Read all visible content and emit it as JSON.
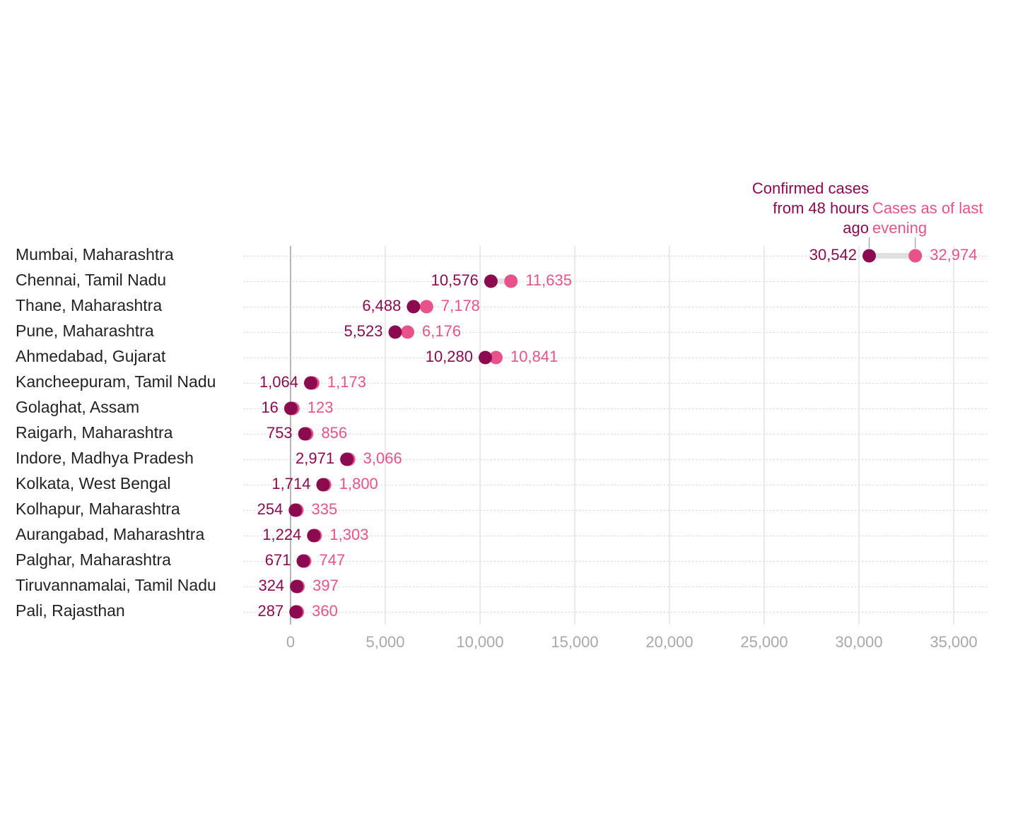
{
  "colors": {
    "previous": "#8b0a50",
    "latest": "#e8528a",
    "connector": "#e0e0e0",
    "grid": "#dddddd",
    "row_line": "#d4d4d4",
    "zero_line": "#999999",
    "label_text": "#222222",
    "tick_text": "#a8a8a8"
  },
  "chart_data": {
    "type": "dot-plot",
    "xlim": [
      0,
      35000
    ],
    "xticks": [
      0,
      5000,
      10000,
      15000,
      20000,
      25000,
      30000,
      35000
    ],
    "xtick_labels": [
      "0",
      "5,000",
      "10,000",
      "15,000",
      "20,000",
      "25,000",
      "30,000",
      "35,000"
    ],
    "legend": {
      "previous_lines": [
        "Confirmed cases",
        "from 48 hours",
        "ago"
      ],
      "latest_lines": [
        "Cases as of last",
        "evening"
      ]
    },
    "rows": [
      {
        "label": "Mumbai, Maharashtra",
        "previous": 30542,
        "latest": 32974,
        "previous_label": "30,542",
        "latest_label": "32,974"
      },
      {
        "label": "Chennai, Tamil Nadu",
        "previous": 10576,
        "latest": 11635,
        "previous_label": "10,576",
        "latest_label": "11,635"
      },
      {
        "label": "Thane, Maharashtra",
        "previous": 6488,
        "latest": 7178,
        "previous_label": "6,488",
        "latest_label": "7,178"
      },
      {
        "label": "Pune, Maharashtra",
        "previous": 5523,
        "latest": 6176,
        "previous_label": "5,523",
        "latest_label": "6,176"
      },
      {
        "label": "Ahmedabad, Gujarat",
        "previous": 10280,
        "latest": 10841,
        "previous_label": "10,280",
        "latest_label": "10,841"
      },
      {
        "label": "Kancheepuram, Tamil Nadu",
        "previous": 1064,
        "latest": 1173,
        "previous_label": "1,064",
        "latest_label": "1,173"
      },
      {
        "label": "Golaghat, Assam",
        "previous": 16,
        "latest": 123,
        "previous_label": "16",
        "latest_label": "123"
      },
      {
        "label": "Raigarh, Maharashtra",
        "previous": 753,
        "latest": 856,
        "previous_label": "753",
        "latest_label": "856"
      },
      {
        "label": "Indore, Madhya Pradesh",
        "previous": 2971,
        "latest": 3066,
        "previous_label": "2,971",
        "latest_label": "3,066"
      },
      {
        "label": "Kolkata, West Bengal",
        "previous": 1714,
        "latest": 1800,
        "previous_label": "1,714",
        "latest_label": "1,800"
      },
      {
        "label": "Kolhapur, Maharashtra",
        "previous": 254,
        "latest": 335,
        "previous_label": "254",
        "latest_label": "335"
      },
      {
        "label": "Aurangabad, Maharashtra",
        "previous": 1224,
        "latest": 1303,
        "previous_label": "1,224",
        "latest_label": "1,303"
      },
      {
        "label": "Palghar, Maharashtra",
        "previous": 671,
        "latest": 747,
        "previous_label": "671",
        "latest_label": "747"
      },
      {
        "label": "Tiruvannamalai, Tamil Nadu",
        "previous": 324,
        "latest": 397,
        "previous_label": "324",
        "latest_label": "397"
      },
      {
        "label": "Pali, Rajasthan",
        "previous": 287,
        "latest": 360,
        "previous_label": "287",
        "latest_label": "360"
      }
    ]
  }
}
